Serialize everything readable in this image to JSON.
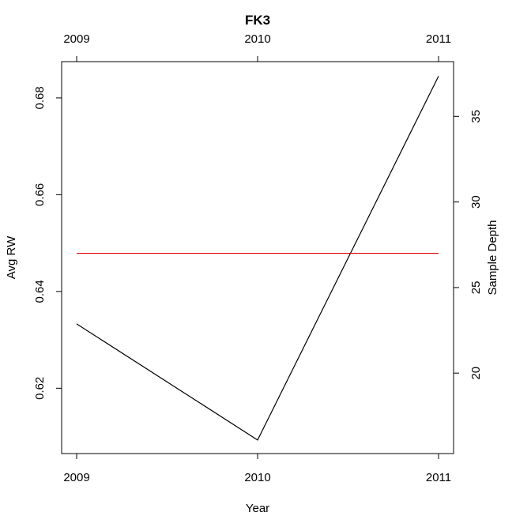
{
  "chart_data": {
    "type": "line",
    "title": "FK3",
    "xlabel": "Year",
    "ylabel_left": "Avg RW",
    "ylabel_right": "Sample Depth",
    "x": [
      2009,
      2010,
      2011
    ],
    "x_tick_labels": [
      "2009",
      "2010",
      "2011"
    ],
    "y_left_ticks": [
      0.62,
      0.64,
      0.66,
      0.68
    ],
    "y_left_tick_labels": [
      "0.62",
      "0.64",
      "0.66",
      "0.68"
    ],
    "y_left_lim": [
      0.6065,
      0.6875
    ],
    "y_right_ticks": [
      20,
      25,
      30,
      35
    ],
    "y_right_tick_labels": [
      "20",
      "25",
      "30",
      "35"
    ],
    "y_right_lim": [
      15.3,
      38.2
    ],
    "series": [
      {
        "axis": "left",
        "color": "#000000",
        "values": [
          0.6333,
          0.6093,
          0.6845
        ]
      },
      {
        "axis": "right",
        "color": "#dd0000",
        "values": [
          27,
          27,
          27
        ]
      }
    ],
    "grid": false,
    "legend": "none"
  }
}
